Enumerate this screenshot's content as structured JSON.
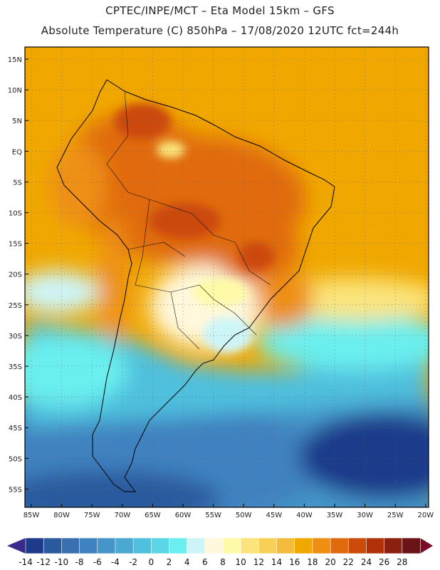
{
  "header": {
    "line1": "CPTEC/INPE/MCT –  Eta Model 15km – GFS",
    "line2": "Absolute Temperature (C) 850hPa – 17/08/2020 12UTC fct=244h"
  },
  "lat_ticks": [
    "15N",
    "10N",
    "5N",
    "EQ",
    "5S",
    "10S",
    "15S",
    "20S",
    "25S",
    "30S",
    "35S",
    "40S",
    "45S",
    "50S",
    "55S"
  ],
  "lon_ticks": [
    "85W",
    "80W",
    "75W",
    "70W",
    "65W",
    "60W",
    "55W",
    "50W",
    "45W",
    "40W",
    "35W",
    "30W",
    "25W",
    "20W"
  ],
  "colorbar": {
    "labels": [
      "-14",
      "-12",
      "-10",
      "-8",
      "-6",
      "-4",
      "-2",
      "0",
      "2",
      "4",
      "6",
      "8",
      "10",
      "12",
      "14",
      "16",
      "18",
      "20",
      "22",
      "24",
      "26",
      "28"
    ],
    "colors": [
      "#1e3a8a",
      "#2a5a9e",
      "#3a6fb0",
      "#3f82c0",
      "#4595c8",
      "#4aa8d2",
      "#50c0de",
      "#5ad6e6",
      "#6aeeee",
      "#cdf5f8",
      "#fff8dc",
      "#fffaa8",
      "#fbe47c",
      "#f8d055",
      "#f3bc3c",
      "#f0a800",
      "#ee8f14",
      "#e06a10",
      "#cc4a0a",
      "#b03008",
      "#8c2010",
      "#6a1418"
    ],
    "under_color": "#3a2a8a",
    "over_color": "#7a0a25"
  }
}
